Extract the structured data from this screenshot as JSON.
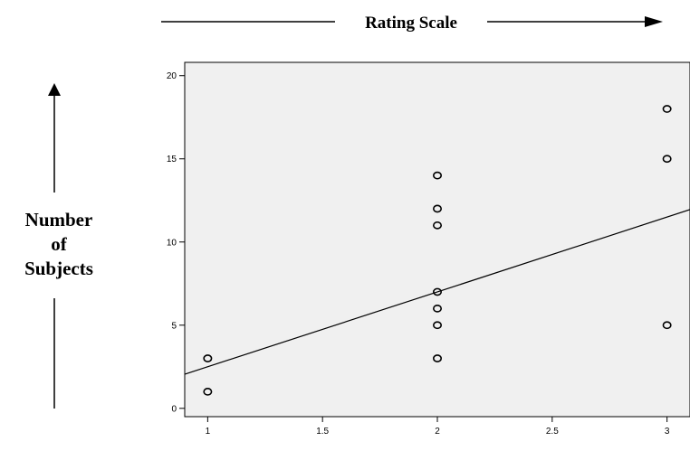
{
  "chart_data": {
    "type": "scatter",
    "title": "",
    "xlabel": "Rating Scale",
    "ylabel_lines": [
      "Number",
      "of",
      "Subjects"
    ],
    "xlim": [
      0.9,
      3.1
    ],
    "ylim": [
      -0.5,
      20.8
    ],
    "x_ticks": [
      1,
      1.5,
      2,
      2.5,
      3
    ],
    "x_tick_labels": [
      "1",
      "1.5",
      "2",
      "2.5",
      "3"
    ],
    "y_ticks": [
      0,
      5,
      10,
      15,
      20
    ],
    "y_tick_labels": [
      "0",
      "5",
      "10",
      "15",
      "20"
    ],
    "grid": false,
    "background_color": "#f0f0f0",
    "points": [
      {
        "x": 1,
        "y": 3
      },
      {
        "x": 1,
        "y": 1
      },
      {
        "x": 2,
        "y": 14
      },
      {
        "x": 2,
        "y": 12
      },
      {
        "x": 2,
        "y": 11
      },
      {
        "x": 2,
        "y": 7
      },
      {
        "x": 2,
        "y": 6
      },
      {
        "x": 2,
        "y": 5
      },
      {
        "x": 2,
        "y": 3
      },
      {
        "x": 3,
        "y": 18
      },
      {
        "x": 3,
        "y": 15
      },
      {
        "x": 3,
        "y": 5
      }
    ],
    "fit_line": {
      "type": "linear",
      "slope": 4.5,
      "intercept": -2.0
    }
  }
}
